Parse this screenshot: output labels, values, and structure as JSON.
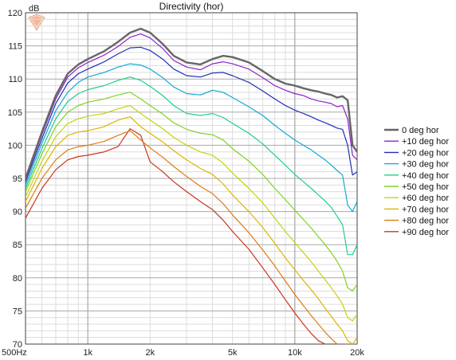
{
  "chart_data": {
    "type": "line",
    "title": "Directivity (hor)",
    "ylabel": "dB",
    "xlabel": "",
    "xscale": "log",
    "xlim": [
      500,
      20000
    ],
    "ylim": [
      70,
      120
    ],
    "grid": true,
    "legend_position": "right",
    "x_ticks": [
      {
        "value": 500,
        "label": "500Hz"
      },
      {
        "value": 1000,
        "label": "1k"
      },
      {
        "value": 2000,
        "label": "2k"
      },
      {
        "value": 5000,
        "label": "5k"
      },
      {
        "value": 10000,
        "label": "10k"
      },
      {
        "value": 20000,
        "label": "20k"
      }
    ],
    "y_ticks": [
      {
        "value": 70,
        "label": "70"
      },
      {
        "value": 75,
        "label": "75"
      },
      {
        "value": 80,
        "label": "80"
      },
      {
        "value": 85,
        "label": "85"
      },
      {
        "value": 90,
        "label": "90"
      },
      {
        "value": 95,
        "label": "95"
      },
      {
        "value": 100,
        "label": "100"
      },
      {
        "value": 105,
        "label": "105"
      },
      {
        "value": 110,
        "label": "110"
      },
      {
        "value": 115,
        "label": "115"
      },
      {
        "value": 120,
        "label": "120"
      }
    ],
    "x": [
      500,
      600,
      700,
      800,
      900,
      1000,
      1200,
      1400,
      1600,
      1800,
      2000,
      2300,
      2600,
      3000,
      3500,
      4000,
      4500,
      5000,
      6000,
      7000,
      8000,
      9000,
      10000,
      11000,
      12000,
      13000,
      14000,
      15000,
      16000,
      17000,
      18000,
      19000,
      20000
    ],
    "series": [
      {
        "name": "0 deg hor",
        "color": "#666666",
        "values": [
          95.0,
          102.0,
          107.5,
          110.8,
          112.2,
          113.0,
          114.2,
          115.6,
          117.0,
          117.6,
          117.0,
          115.3,
          113.5,
          112.5,
          112.2,
          113.0,
          113.5,
          113.3,
          112.5,
          111.2,
          110.0,
          109.3,
          109.0,
          108.6,
          108.3,
          108.1,
          107.8,
          107.6,
          107.2,
          107.4,
          106.8,
          100.0,
          99.0
        ]
      },
      {
        "name": "+10 deg hor",
        "color": "#8e22c9",
        "values": [
          94.8,
          101.6,
          107.0,
          110.3,
          111.7,
          112.5,
          113.6,
          114.9,
          116.3,
          116.8,
          116.2,
          114.6,
          112.8,
          111.8,
          111.4,
          112.3,
          112.6,
          112.3,
          111.5,
          110.2,
          109.0,
          108.3,
          107.8,
          107.5,
          107.0,
          106.7,
          106.5,
          106.3,
          105.8,
          106.0,
          104.0,
          98.5,
          97.8
        ]
      },
      {
        "name": "+20 deg hor",
        "color": "#1f2fb4",
        "values": [
          94.5,
          101.0,
          106.3,
          109.4,
          110.8,
          111.5,
          112.6,
          113.8,
          114.7,
          114.8,
          114.3,
          113.0,
          111.5,
          110.5,
          110.3,
          110.9,
          111.0,
          110.5,
          109.5,
          108.2,
          107.0,
          106.0,
          105.3,
          104.8,
          104.3,
          103.8,
          103.4,
          103.0,
          102.6,
          102.4,
          100.0,
          95.5,
          96.0
        ]
      },
      {
        "name": "+30 deg hor",
        "color": "#13a9d6",
        "values": [
          94.0,
          100.3,
          105.2,
          108.0,
          109.5,
          110.3,
          111.0,
          111.8,
          112.3,
          112.1,
          111.5,
          110.2,
          108.8,
          107.8,
          107.6,
          108.3,
          108.0,
          107.2,
          105.8,
          104.5,
          103.0,
          101.8,
          100.8,
          100.0,
          99.3,
          98.5,
          97.8,
          97.0,
          96.2,
          95.5,
          91.0,
          90.0,
          91.5
        ]
      },
      {
        "name": "+40 deg hor",
        "color": "#1fcf8a",
        "values": [
          93.5,
          99.5,
          104.0,
          106.6,
          107.8,
          108.4,
          109.0,
          109.8,
          110.3,
          109.8,
          108.9,
          107.5,
          106.0,
          104.8,
          104.5,
          104.8,
          104.2,
          103.3,
          101.8,
          100.2,
          98.5,
          97.0,
          95.6,
          94.5,
          93.5,
          92.5,
          91.6,
          90.6,
          89.3,
          88.0,
          83.5,
          83.5,
          85.0
        ]
      },
      {
        "name": "+50 deg hor",
        "color": "#7ed321",
        "values": [
          93.0,
          98.7,
          102.8,
          105.0,
          106.0,
          106.5,
          107.0,
          107.6,
          108.0,
          107.0,
          106.0,
          104.7,
          103.4,
          102.4,
          101.8,
          101.6,
          100.8,
          99.5,
          97.6,
          95.6,
          93.5,
          91.8,
          90.2,
          88.8,
          87.5,
          86.2,
          85.0,
          83.8,
          82.5,
          81.0,
          78.5,
          78.0,
          79.0
        ]
      },
      {
        "name": "+60 deg hor",
        "color": "#c8d20e",
        "values": [
          92.2,
          97.6,
          101.3,
          103.3,
          104.0,
          104.4,
          104.8,
          105.5,
          106.0,
          104.8,
          103.8,
          102.5,
          101.2,
          100.0,
          99.0,
          98.5,
          97.3,
          95.8,
          93.5,
          91.3,
          89.0,
          87.0,
          85.3,
          83.8,
          82.4,
          81.0,
          79.7,
          78.5,
          77.3,
          76.0,
          74.0,
          73.5,
          74.5
        ]
      },
      {
        "name": "+70 deg hor",
        "color": "#dcb600",
        "values": [
          91.5,
          96.5,
          99.8,
          101.5,
          102.0,
          102.2,
          102.8,
          103.8,
          104.3,
          102.8,
          101.8,
          100.5,
          99.2,
          97.8,
          96.5,
          95.6,
          94.2,
          92.5,
          90.0,
          87.6,
          85.2,
          83.0,
          81.2,
          79.6,
          78.2,
          76.8,
          75.4,
          74.2,
          73.0,
          72.0,
          70.5,
          70.0,
          71.0
        ]
      },
      {
        "name": "+80 deg hor",
        "color": "#e07b10",
        "values": [
          90.5,
          95.0,
          97.8,
          99.3,
          99.8,
          100.0,
          100.6,
          101.5,
          102.2,
          100.8,
          99.6,
          98.2,
          96.8,
          95.3,
          93.8,
          92.7,
          91.2,
          89.5,
          86.8,
          84.2,
          81.8,
          79.5,
          77.5,
          75.8,
          74.3,
          73.0,
          71.8,
          70.8,
          70.0,
          70.0,
          70.0,
          70.0,
          70.0
        ]
      },
      {
        "name": "+90 deg hor",
        "color": "#c9351d",
        "values": [
          89.0,
          93.5,
          96.3,
          97.8,
          98.3,
          98.5,
          99.0,
          99.8,
          102.5,
          101.5,
          97.5,
          96.0,
          94.5,
          93.0,
          91.5,
          90.3,
          88.7,
          87.0,
          84.3,
          81.5,
          79.0,
          76.7,
          74.7,
          73.0,
          71.6,
          70.5,
          70.0,
          70.0,
          70.0,
          70.0,
          70.0,
          70.0,
          70.0
        ]
      }
    ]
  },
  "colors": {
    "grid_major": "#a8a8a8",
    "grid_minor": "#dcdcdc",
    "frame": "#444444"
  }
}
